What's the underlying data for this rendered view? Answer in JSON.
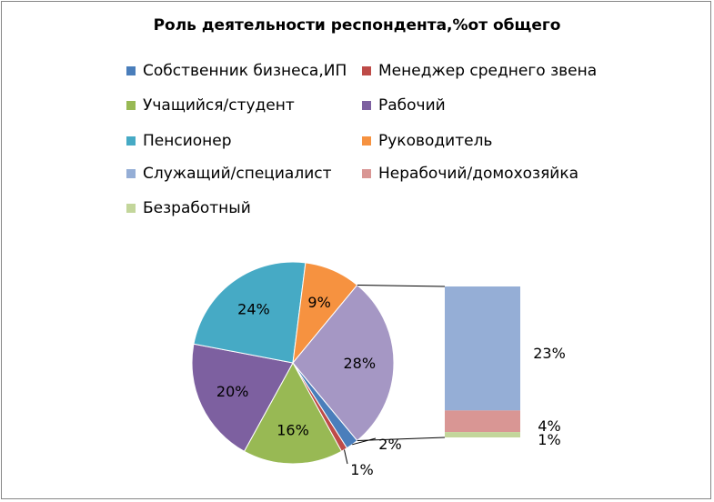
{
  "chart_data": {
    "type": "pie",
    "subtype": "bar-of-pie",
    "title": "Роль деятельности респондента,%от общего",
    "legend_placement": "top",
    "categories": [
      "Собственник бизнеса,ИП",
      "Менеджер среднего звена",
      "Учащийся/студент",
      "Рабочий",
      "Пенсионер",
      "Руководитель",
      "Служащий/специалист",
      "Нерабочий/домохозяйка",
      "Безработный"
    ],
    "colors": [
      "#4a7ebb",
      "#be4b48",
      "#98b954",
      "#7d60a0",
      "#46aac5",
      "#f69240",
      "#95aed6",
      "#d99694",
      "#c3d69b"
    ],
    "pie_values": [
      2,
      1,
      16,
      20,
      24,
      9
    ],
    "pie_labels": [
      "2%",
      "1%",
      "16%",
      "20%",
      "24%",
      "9%"
    ],
    "other_slice_value": 28,
    "other_slice_label": "28%",
    "other_slice_color": "#a597c4",
    "bar_values": [
      23,
      4,
      1
    ],
    "bar_labels": [
      "23%",
      "4%",
      "1%"
    ]
  }
}
